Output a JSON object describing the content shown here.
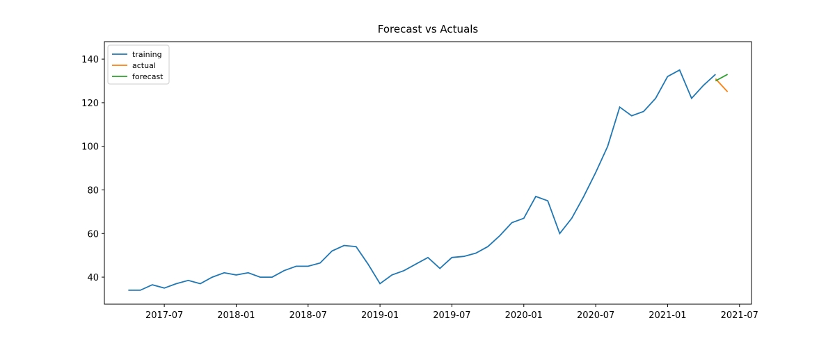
{
  "chart_data": {
    "type": "line",
    "title": "Forecast vs Actuals",
    "xlim": [
      "2017-02",
      "2021-08"
    ],
    "xticks": [
      "2017-07",
      "2018-01",
      "2018-07",
      "2019-01",
      "2019-07",
      "2020-01",
      "2020-07",
      "2021-01",
      "2021-07"
    ],
    "ylim": [
      27.6,
      148
    ],
    "yticks": [
      40,
      60,
      80,
      100,
      120,
      140
    ],
    "legend": "upper left",
    "series": [
      {
        "name": "training",
        "color": "#1f77b4",
        "x": [
          "2017-04",
          "2017-05",
          "2017-06",
          "2017-07",
          "2017-08",
          "2017-09",
          "2017-10",
          "2017-11",
          "2017-12",
          "2018-01",
          "2018-02",
          "2018-03",
          "2018-04",
          "2018-05",
          "2018-06",
          "2018-07",
          "2018-08",
          "2018-09",
          "2018-10",
          "2018-11",
          "2018-12",
          "2019-01",
          "2019-02",
          "2019-03",
          "2019-04",
          "2019-05",
          "2019-06",
          "2019-07",
          "2019-08",
          "2019-09",
          "2019-10",
          "2019-11",
          "2019-12",
          "2020-01",
          "2020-02",
          "2020-03",
          "2020-04",
          "2020-05",
          "2020-06",
          "2020-07",
          "2020-08",
          "2020-09",
          "2020-10",
          "2020-11",
          "2020-12",
          "2021-01",
          "2021-02",
          "2021-03",
          "2021-04",
          "2021-05"
        ],
        "values": [
          34,
          34,
          36.5,
          35,
          37,
          38.5,
          37,
          40,
          42,
          41,
          42,
          40,
          40,
          43,
          45,
          45,
          46.5,
          52,
          54.5,
          54,
          46,
          37,
          41,
          43,
          46,
          49,
          44,
          49,
          49.5,
          51,
          54,
          59,
          65,
          67,
          77,
          75,
          60,
          67,
          77,
          88,
          100,
          118,
          114,
          116,
          122,
          132,
          135,
          122,
          128,
          133
        ]
      },
      {
        "name": "actual",
        "color": "#ff7f0e",
        "x": [
          "2021-05",
          "2021-06"
        ],
        "values": [
          131,
          125
        ]
      },
      {
        "name": "forecast",
        "color": "#2ca02c",
        "x": [
          "2021-05",
          "2021-06"
        ],
        "values": [
          130,
          133
        ]
      }
    ]
  }
}
